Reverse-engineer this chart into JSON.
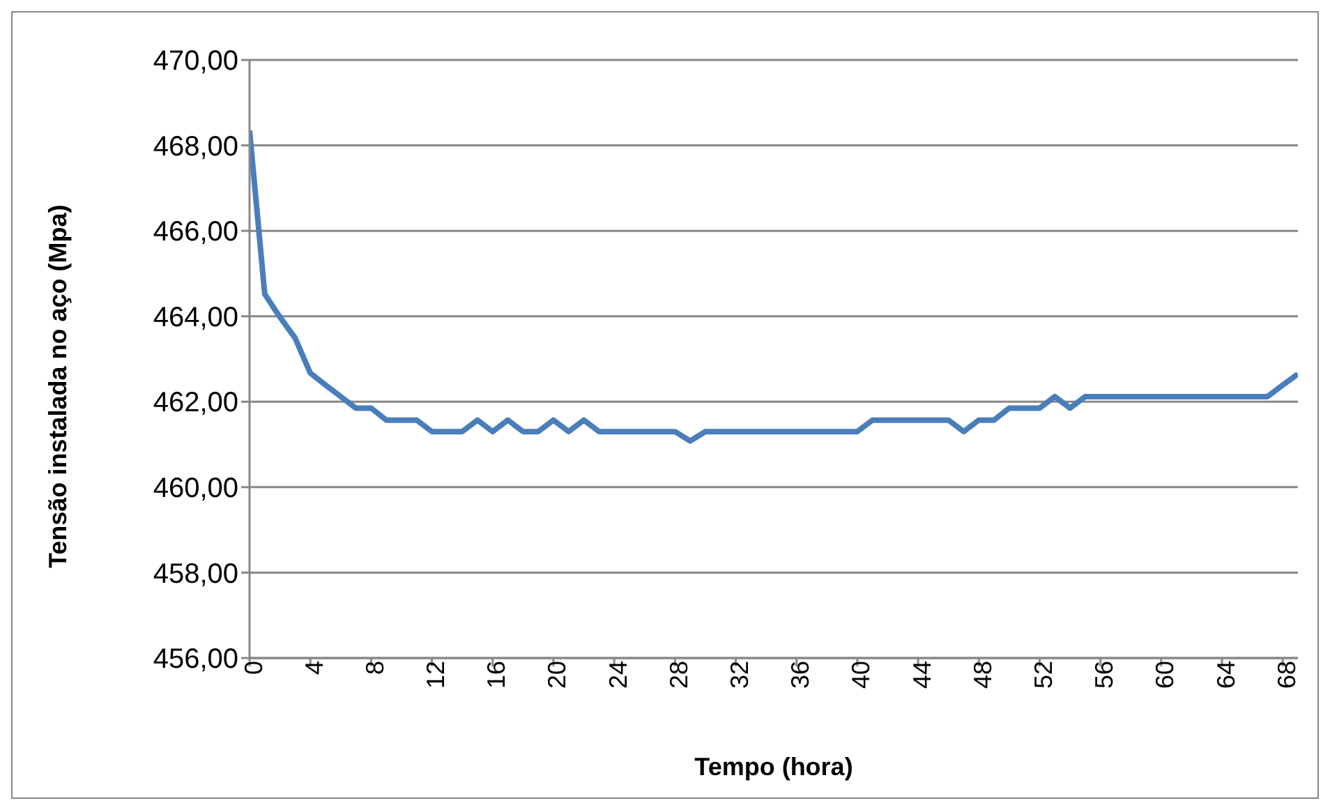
{
  "chart_data": {
    "type": "line",
    "xlabel": "Tempo (hora)",
    "ylabel": "Tensão instalada no aço (Mpa)",
    "x": [
      0,
      1,
      2,
      3,
      4,
      5,
      6,
      7,
      8,
      9,
      10,
      11,
      12,
      13,
      14,
      15,
      16,
      17,
      18,
      19,
      20,
      21,
      22,
      23,
      24,
      25,
      26,
      27,
      28,
      29,
      30,
      31,
      32,
      33,
      34,
      35,
      36,
      37,
      38,
      39,
      40,
      41,
      42,
      43,
      44,
      45,
      46,
      47,
      48,
      49,
      50,
      51,
      52,
      53,
      54,
      55,
      56,
      57,
      58,
      59,
      60,
      61,
      62,
      63,
      64,
      65,
      66,
      67,
      68,
      69
    ],
    "series": [
      {
        "color": "#4a7ebb",
        "values": [
          468.35,
          464.52,
          463.98,
          463.49,
          462.67,
          462.39,
          462.12,
          461.85,
          461.85,
          461.57,
          461.57,
          461.57,
          461.3,
          461.3,
          461.3,
          461.57,
          461.3,
          461.57,
          461.3,
          461.3,
          461.57,
          461.3,
          461.57,
          461.3,
          461.3,
          461.3,
          461.3,
          461.3,
          461.3,
          461.08,
          461.3,
          461.3,
          461.3,
          461.3,
          461.3,
          461.3,
          461.3,
          461.3,
          461.3,
          461.3,
          461.3,
          461.57,
          461.57,
          461.57,
          461.57,
          461.57,
          461.57,
          461.3,
          461.57,
          461.57,
          461.85,
          461.85,
          461.85,
          462.12,
          461.85,
          462.12,
          462.12,
          462.12,
          462.12,
          462.12,
          462.12,
          462.12,
          462.12,
          462.12,
          462.12,
          462.12,
          462.12,
          462.12,
          462.39,
          462.65
        ]
      }
    ],
    "xlim": [
      0,
      69
    ],
    "xticks": [
      0,
      4,
      8,
      12,
      16,
      20,
      24,
      28,
      32,
      36,
      40,
      44,
      48,
      52,
      56,
      60,
      64,
      68
    ],
    "ylim": [
      456,
      470
    ],
    "yticks": [
      {
        "value": 456,
        "label": "456,00"
      },
      {
        "value": 458,
        "label": "458,00"
      },
      {
        "value": 460,
        "label": "460,00"
      },
      {
        "value": 462,
        "label": "462,00"
      },
      {
        "value": 464,
        "label": "464,00"
      },
      {
        "value": 466,
        "label": "466,00"
      },
      {
        "value": 468,
        "label": "468,00"
      },
      {
        "value": 470,
        "label": "470,00"
      }
    ],
    "grid": "y",
    "legend": false,
    "marker": "none",
    "line_style": "solid"
  }
}
